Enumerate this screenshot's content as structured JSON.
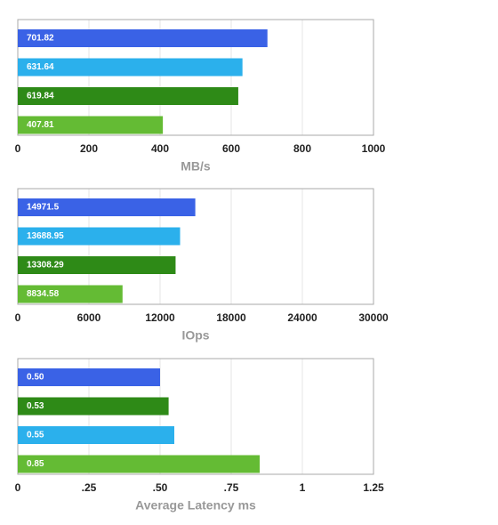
{
  "chart_data": [
    {
      "type": "hbar",
      "xlabel": "MB/s",
      "values": [
        701.82,
        631.64,
        619.84,
        407.81
      ],
      "colors": [
        "#3a62e6",
        "#2bb0ec",
        "#2e8a17",
        "#64bb34"
      ],
      "xlim": [
        0,
        1000
      ],
      "xticks": [
        0,
        200,
        400,
        600,
        800,
        1000
      ],
      "grid": true
    },
    {
      "type": "hbar",
      "xlabel": "IOps",
      "values": [
        14971.5,
        13688.95,
        13308.29,
        8834.58
      ],
      "colors": [
        "#3a62e6",
        "#2bb0ec",
        "#2e8a17",
        "#64bb34"
      ],
      "xlim": [
        0,
        30000
      ],
      "xticks": [
        0,
        6000,
        12000,
        18000,
        24000,
        30000
      ],
      "grid": true
    },
    {
      "type": "hbar",
      "xlabel": "Average Latency ms",
      "values": [
        0.5,
        0.53,
        0.55,
        0.85
      ],
      "value_labels": [
        "0.50",
        "0.53",
        "0.55",
        "0.85"
      ],
      "colors": [
        "#3a62e6",
        "#2e8a17",
        "#2bb0ec",
        "#64bb34"
      ],
      "xlim": [
        0,
        1.25
      ],
      "xticks": [
        0,
        {
          "value": 0.25,
          "label": ".25"
        },
        {
          "value": 0.5,
          "label": ".50"
        },
        {
          "value": 0.75,
          "label": ".75"
        },
        1,
        1.25
      ],
      "grid": true
    }
  ]
}
